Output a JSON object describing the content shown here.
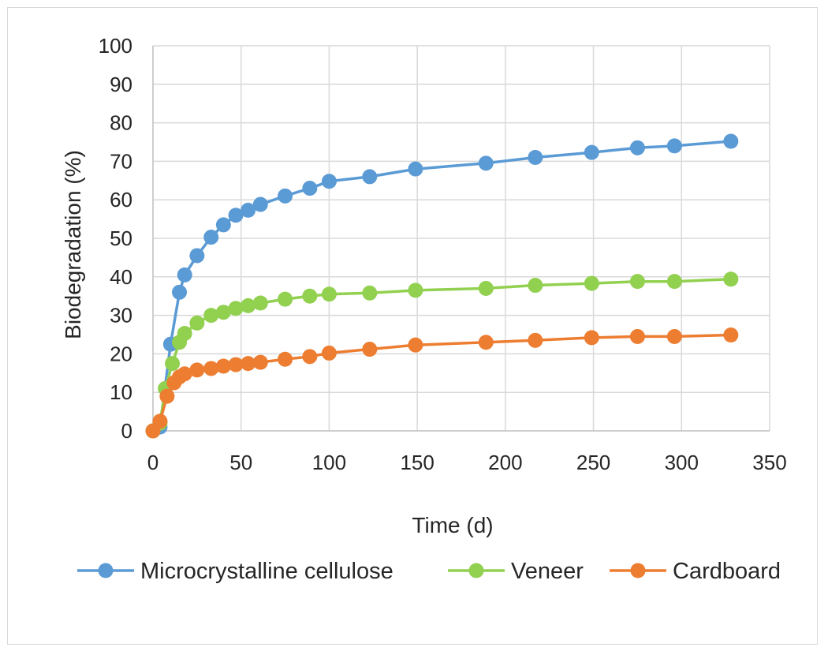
{
  "chart_data": {
    "type": "line",
    "title": "",
    "xlabel": "Time (d)",
    "ylabel": "Biodegradation (%)",
    "xlim": [
      0,
      350
    ],
    "ylim": [
      0,
      100
    ],
    "xticks": [
      0,
      50,
      100,
      150,
      200,
      250,
      300,
      350
    ],
    "yticks": [
      0,
      10,
      20,
      30,
      40,
      50,
      60,
      70,
      80,
      90,
      100
    ],
    "grid": true,
    "legend_position": "bottom",
    "series": [
      {
        "name": "Microcrystalline cellulose",
        "color": "#5b9bd5",
        "x": [
          0,
          4,
          10,
          15,
          18,
          25,
          33,
          40,
          47,
          54,
          61,
          75,
          89,
          100,
          123,
          149,
          189,
          217,
          249,
          275,
          296,
          328
        ],
        "y": [
          0,
          1,
          22.5,
          36,
          40.5,
          45.5,
          50.3,
          53.5,
          56,
          57.3,
          58.8,
          61,
          63,
          64.8,
          66,
          68,
          69.5,
          71,
          72.3,
          73.5,
          74,
          75.2
        ]
      },
      {
        "name": "Veneer",
        "color": "#92d050",
        "x": [
          0,
          4,
          7,
          11,
          15,
          18,
          25,
          33,
          40,
          47,
          54,
          61,
          75,
          89,
          100,
          123,
          149,
          189,
          217,
          249,
          275,
          296,
          328
        ],
        "y": [
          0,
          2,
          11,
          17.5,
          23,
          25.3,
          28,
          30,
          30.8,
          31.8,
          32.5,
          33.2,
          34.2,
          35,
          35.5,
          35.8,
          36.5,
          37,
          37.8,
          38.3,
          38.8,
          38.8,
          39.4
        ]
      },
      {
        "name": "Cardboard",
        "color": "#ed7d31",
        "x": [
          0,
          4,
          8,
          12,
          15,
          18,
          25,
          33,
          40,
          47,
          54,
          61,
          75,
          89,
          100,
          123,
          149,
          189,
          217,
          249,
          275,
          296,
          328
        ],
        "y": [
          0,
          2.5,
          9,
          12.5,
          14,
          14.8,
          15.8,
          16.2,
          16.8,
          17.2,
          17.5,
          17.8,
          18.6,
          19.3,
          20.2,
          21.2,
          22.3,
          23,
          23.5,
          24.2,
          24.5,
          24.5,
          24.9
        ]
      }
    ]
  }
}
